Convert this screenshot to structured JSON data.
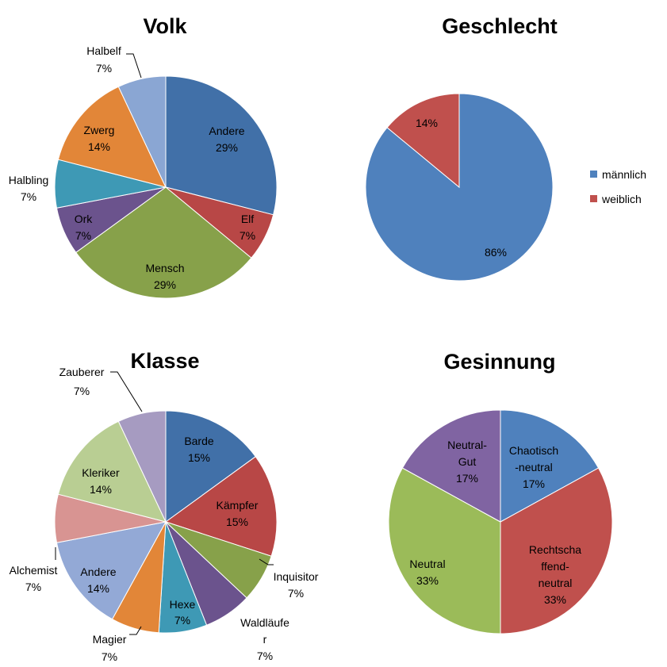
{
  "chart_data": [
    {
      "id": "volk",
      "type": "pie",
      "title": "Volk",
      "slices": [
        {
          "name": "Andere",
          "value": 29,
          "label": "29%",
          "color": "#4170A8"
        },
        {
          "name": "Elf",
          "value": 7,
          "label": "7%",
          "color": "#B84746"
        },
        {
          "name": "Mensch",
          "value": 29,
          "label": "29%",
          "color": "#87A14A"
        },
        {
          "name": "Ork",
          "value": 7,
          "label": "7%",
          "color": "#6B538D"
        },
        {
          "name": "Halbling",
          "value": 7,
          "label": "7%",
          "color": "#3E99B5"
        },
        {
          "name": "Zwerg",
          "value": 14,
          "label": "14%",
          "color": "#E28638"
        },
        {
          "name": "Halbelf",
          "value": 7,
          "label": "7%",
          "color": "#8AA6D3"
        }
      ]
    },
    {
      "id": "geschlecht",
      "type": "pie",
      "title": "Geschlecht",
      "slices": [
        {
          "name": "männlich",
          "value": 86,
          "label": "86%",
          "color": "#4F81BD"
        },
        {
          "name": "weiblich",
          "value": 14,
          "label": "14%",
          "color": "#C0504D"
        }
      ],
      "legend": [
        "männlich",
        "weiblich"
      ],
      "legend_position": "right"
    },
    {
      "id": "klasse",
      "type": "pie",
      "title": "Klasse",
      "slices": [
        {
          "name": "Barde",
          "value": 15,
          "label": "15%",
          "color": "#4170A8"
        },
        {
          "name": "Kämpfer",
          "value": 15,
          "label": "15%",
          "color": "#B84746"
        },
        {
          "name": "Inquisitor",
          "value": 7,
          "label": "7%",
          "color": "#87A14A"
        },
        {
          "name": "Waldläufe r",
          "value": 7,
          "label": "7%",
          "color": "#6B538D"
        },
        {
          "name": "Hexe",
          "value": 7,
          "label": "7%",
          "color": "#3E99B5"
        },
        {
          "name": "Magier",
          "value": 7,
          "label": "7%",
          "color": "#E28638"
        },
        {
          "name": "Andere",
          "value": 14,
          "label": "14%",
          "color": "#93A9D6"
        },
        {
          "name": "Alchemist",
          "value": 7,
          "label": "7%",
          "color": "#D89492"
        },
        {
          "name": "Kleriker",
          "value": 14,
          "label": "14%",
          "color": "#B9CE93"
        },
        {
          "name": "Zauberer",
          "value": 7,
          "label": "7%",
          "color": "#A69BC1"
        }
      ]
    },
    {
      "id": "gesinnung",
      "type": "pie",
      "title": "Gesinnung",
      "slices": [
        {
          "name": "Chaotisch -neutral",
          "value": 17,
          "label": "17%",
          "color": "#4F81BD"
        },
        {
          "name": "Rechtschaffend-neutral",
          "value": 33,
          "label": "33%",
          "color": "#C0504D"
        },
        {
          "name": "Neutral",
          "value": 33,
          "label": "33%",
          "color": "#9BBB59"
        },
        {
          "name": "Neutral-Gut",
          "value": 17,
          "label": "17%",
          "color": "#8064A2"
        }
      ]
    }
  ]
}
